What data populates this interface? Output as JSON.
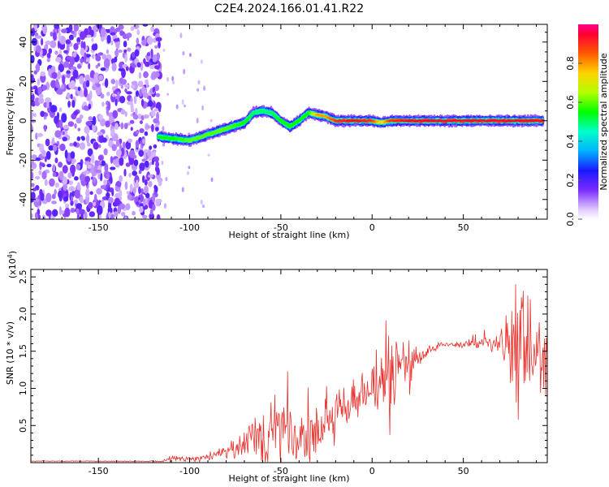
{
  "title": "C2E4.2024.166.01.41.R22",
  "chart_data": [
    {
      "type": "heatmap",
      "xlabel": "Height of straight line (km)",
      "ylabel": "Frequency (Hz)",
      "xlim": [
        -187,
        96
      ],
      "ylim": [
        -50,
        49
      ],
      "xticks": [
        -150,
        -100,
        -50,
        0,
        50
      ],
      "yticks": [
        -40,
        -20,
        0,
        20,
        40
      ],
      "noise_region_x": [
        -187,
        -116
      ],
      "signal_ridge": {
        "x": [
          -117,
          -110,
          -100,
          -90,
          -80,
          -70,
          -65,
          -60,
          -55,
          -50,
          -45,
          -40,
          -35,
          -30,
          -25,
          -20,
          -10,
          0,
          5,
          10,
          20,
          50,
          94
        ],
        "frequency": [
          -8,
          -9,
          -10,
          -7,
          -4,
          -1,
          4,
          5,
          4,
          0,
          -3,
          0,
          4,
          3,
          2,
          0,
          0,
          0,
          -1,
          0,
          0,
          0,
          0
        ],
        "amplitude": [
          0.55,
          0.55,
          0.6,
          0.6,
          0.6,
          0.55,
          0.5,
          0.5,
          0.5,
          0.55,
          0.55,
          0.55,
          0.55,
          0.8,
          0.8,
          0.9,
          0.95,
          0.9,
          0.7,
          0.9,
          0.95,
          0.95,
          0.95
        ]
      },
      "colorbar": {
        "label": "Normalized spectral amplitude",
        "range": [
          0.0,
          1.0
        ],
        "ticks": [
          "0.0",
          "0.2",
          "0.4",
          "0.6",
          "0.8"
        ],
        "tick_values": [
          0.0,
          0.2,
          0.4,
          0.6,
          0.8
        ]
      }
    },
    {
      "type": "line",
      "xlabel": "Height of straight line (km)",
      "ylabel": "SNR (10 * v/v)",
      "y_multiplier": "(x10",
      "y_multiplier_exp": "4",
      "y_multiplier_close": ")",
      "xlim": [
        -187,
        96
      ],
      "ylim": [
        0,
        2.6
      ],
      "xticks": [
        -150,
        -100,
        -50,
        0,
        50
      ],
      "yticks": [
        "0.5",
        "1.0",
        "1.5",
        "2.0",
        "2.5"
      ],
      "ytick_values": [
        0.5,
        1.0,
        1.5,
        2.0,
        2.5
      ],
      "series": [
        {
          "color": "#e8302c",
          "x": [
            -187,
            -160,
            -130,
            -115,
            -110,
            -100,
            -90,
            -80,
            -75,
            -70,
            -65,
            -60,
            -55,
            -50,
            -45,
            -40,
            -35,
            -30,
            -25,
            -20,
            -15,
            -10,
            -5,
            0,
            5,
            10,
            15,
            20,
            25,
            30,
            35,
            40,
            50,
            60,
            70,
            75,
            80,
            85,
            90,
            95
          ],
          "y": [
            0.02,
            0.02,
            0.02,
            0.02,
            0.06,
            0.05,
            0.08,
            0.12,
            0.18,
            0.25,
            0.35,
            0.38,
            0.45,
            0.4,
            0.3,
            0.22,
            0.3,
            0.45,
            0.55,
            0.65,
            0.8,
            0.85,
            0.9,
            1.0,
            1.1,
            1.15,
            1.25,
            1.35,
            1.4,
            1.5,
            1.55,
            1.58,
            1.6,
            1.6,
            1.6,
            1.6,
            1.55,
            1.5,
            1.45,
            1.4
          ],
          "noise_amp": [
            0.004,
            0.004,
            0.004,
            0.01,
            0.04,
            0.04,
            0.05,
            0.08,
            0.15,
            0.2,
            0.3,
            0.45,
            0.4,
            0.55,
            0.35,
            0.3,
            0.35,
            0.45,
            0.45,
            0.35,
            0.3,
            0.3,
            0.25,
            0.3,
            0.5,
            0.6,
            0.3,
            0.4,
            0.15,
            0.08,
            0.05,
            0.05,
            0.05,
            0.06,
            0.15,
            0.4,
            0.8,
            0.6,
            0.5,
            0.4
          ]
        }
      ]
    }
  ]
}
